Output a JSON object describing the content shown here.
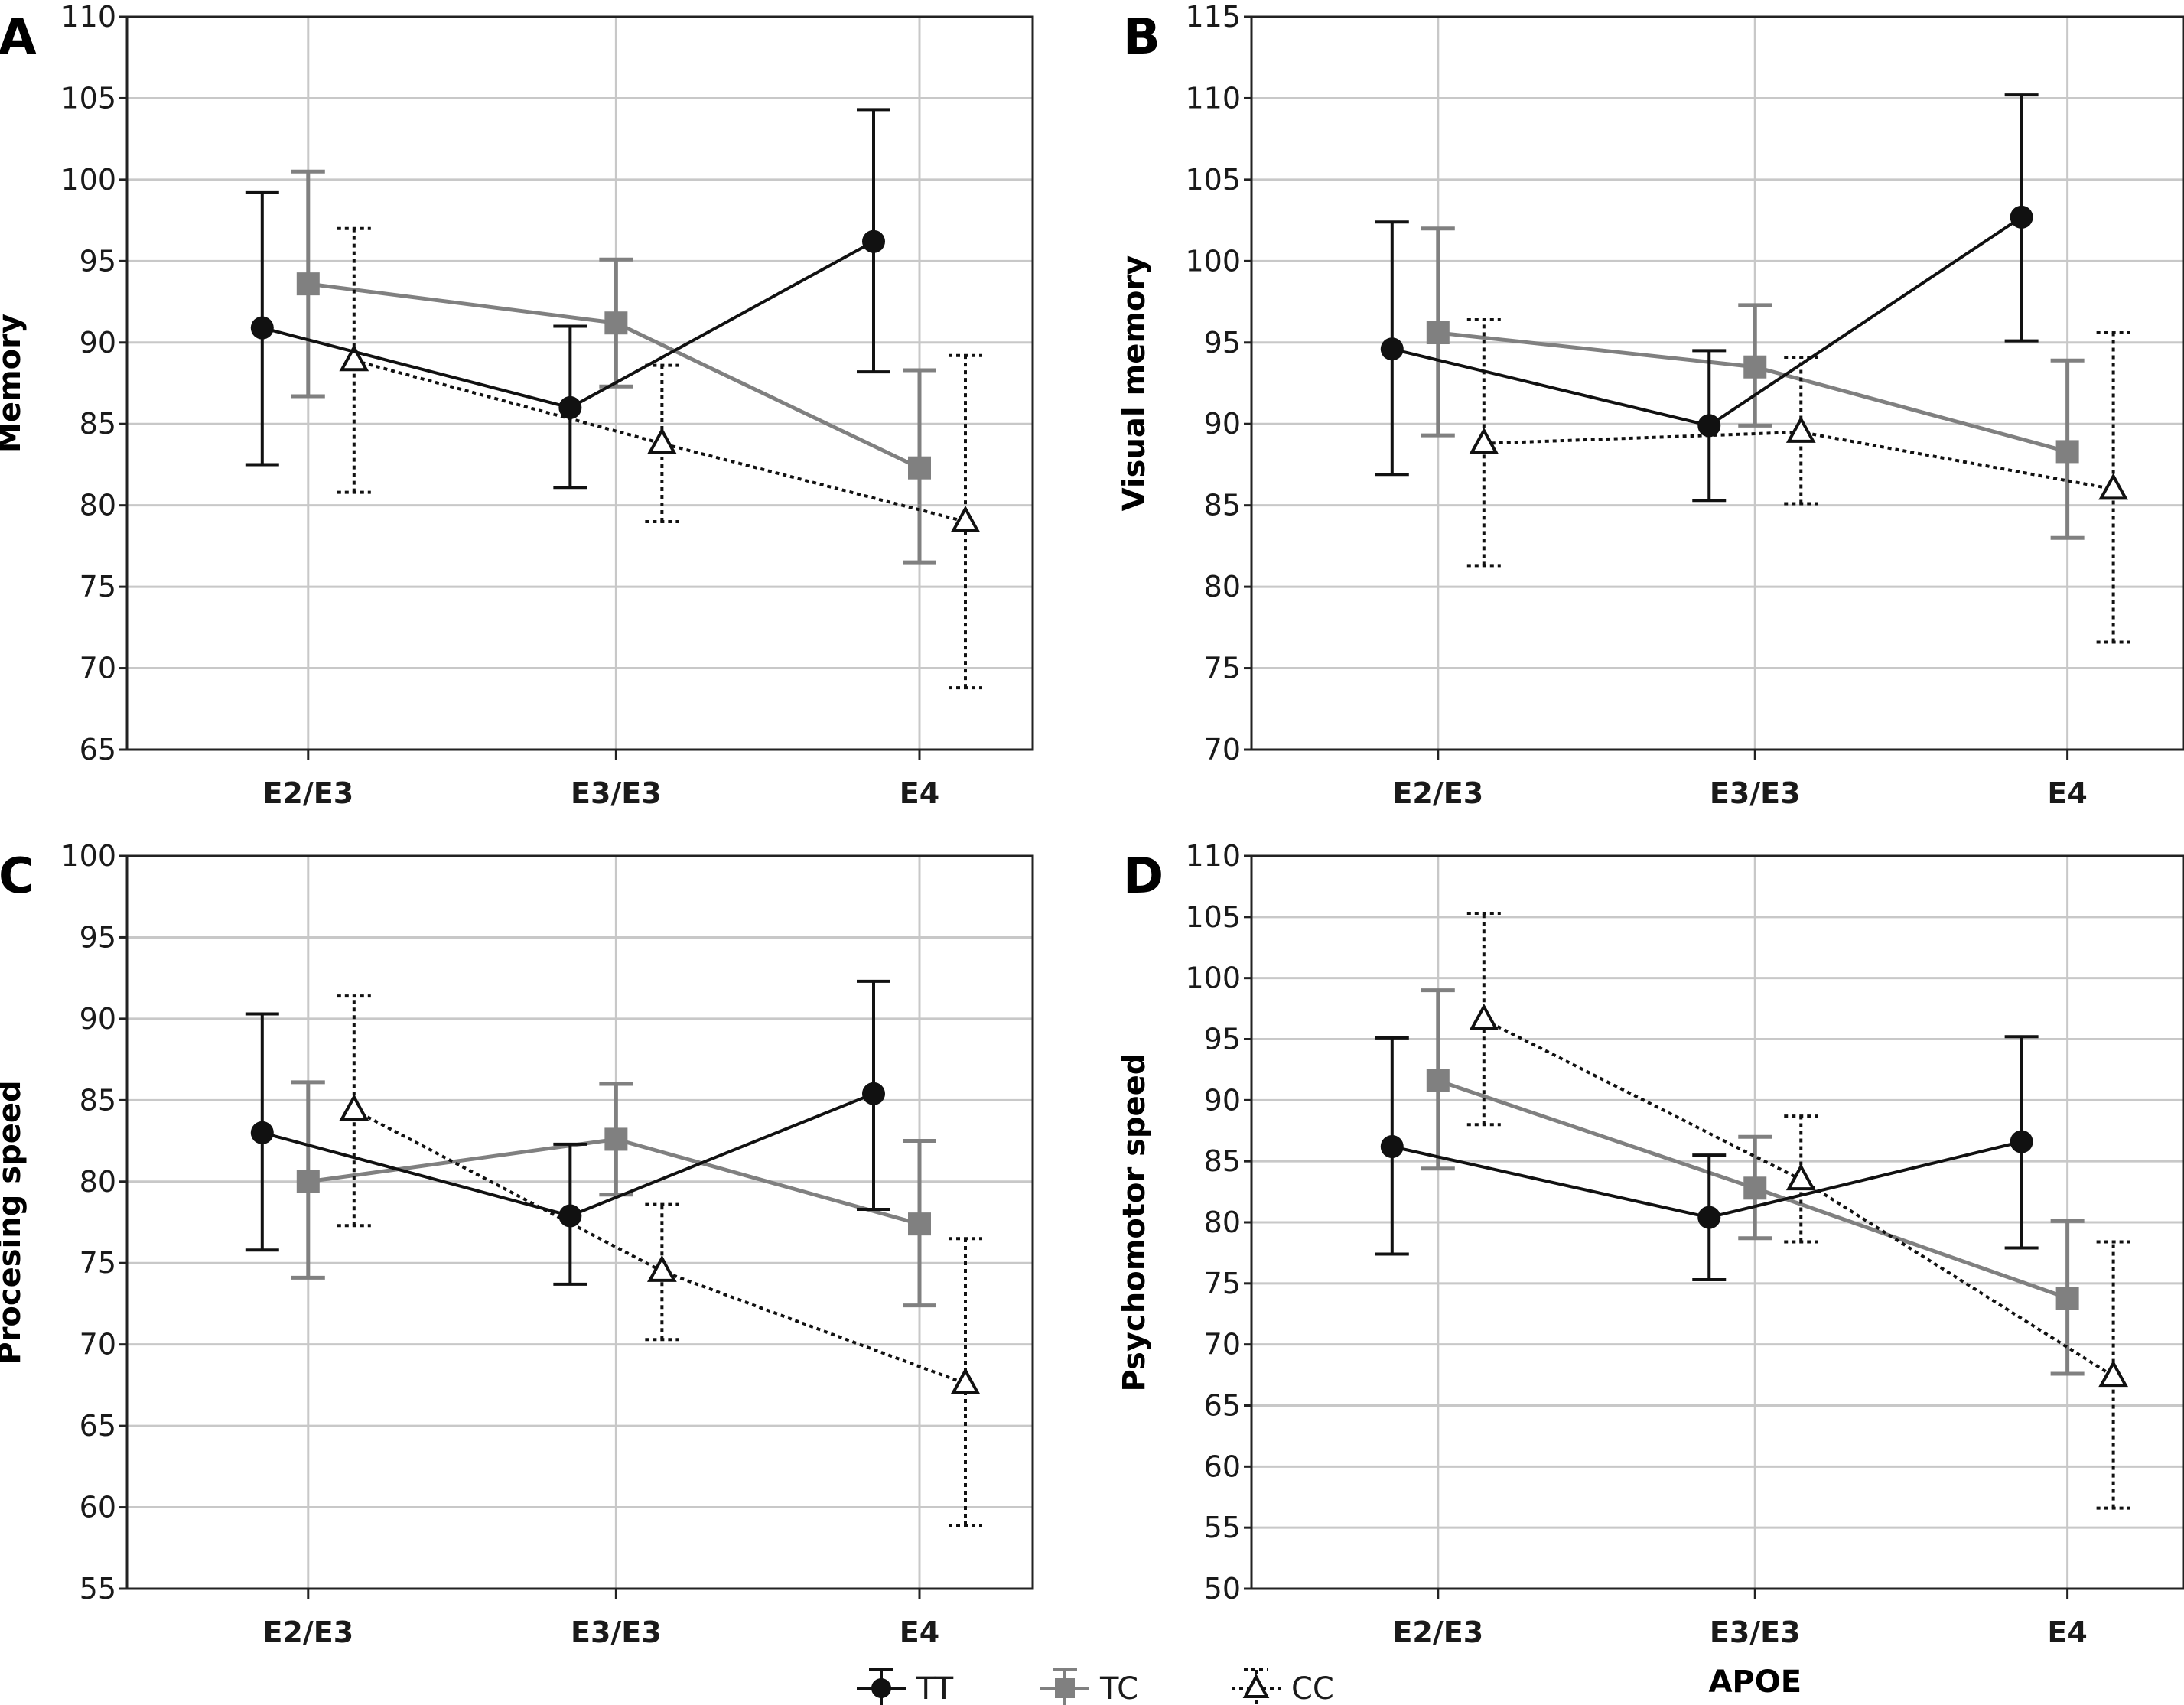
{
  "chart_data": [
    {
      "panel": "A",
      "type": "line",
      "ylabel": "Memory",
      "xlabel": "",
      "categories": [
        "E2/E3",
        "E3/E3",
        "E4"
      ],
      "ylim": [
        65,
        110
      ],
      "yticks": [
        65,
        70,
        75,
        80,
        85,
        90,
        95,
        100,
        105,
        110
      ],
      "grid": true,
      "series": [
        {
          "key": "TT",
          "mean": [
            90.9,
            86.0,
            96.2
          ],
          "lower": [
            82.5,
            81.1,
            88.2
          ],
          "upper": [
            99.2,
            91.0,
            104.3
          ]
        },
        {
          "key": "TC",
          "mean": [
            93.6,
            91.2,
            82.3
          ],
          "lower": [
            86.7,
            87.3,
            76.5
          ],
          "upper": [
            100.5,
            95.1,
            88.3
          ]
        },
        {
          "key": "CC",
          "mean": [
            88.9,
            83.8,
            79.0
          ],
          "lower": [
            80.8,
            79.0,
            68.8
          ],
          "upper": [
            97.0,
            88.6,
            89.2
          ]
        }
      ]
    },
    {
      "panel": "B",
      "type": "line",
      "ylabel": "Visual memory",
      "xlabel": "",
      "categories": [
        "E2/E3",
        "E3/E3",
        "E4"
      ],
      "ylim": [
        70,
        115
      ],
      "yticks": [
        70,
        75,
        80,
        85,
        90,
        95,
        100,
        105,
        110,
        115
      ],
      "grid": true,
      "series": [
        {
          "key": "TT",
          "mean": [
            94.6,
            89.9,
            102.7
          ],
          "lower": [
            86.9,
            85.3,
            95.1
          ],
          "upper": [
            102.4,
            94.5,
            110.2
          ]
        },
        {
          "key": "TC",
          "mean": [
            95.6,
            93.5,
            88.3
          ],
          "lower": [
            89.3,
            89.9,
            83.0
          ],
          "upper": [
            102.0,
            97.3,
            93.9
          ]
        },
        {
          "key": "CC",
          "mean": [
            88.8,
            89.5,
            86.0
          ],
          "lower": [
            81.3,
            85.1,
            76.6
          ],
          "upper": [
            96.4,
            94.1,
            95.6
          ]
        }
      ]
    },
    {
      "panel": "C",
      "type": "line",
      "ylabel": "Procesing speed",
      "xlabel": "",
      "categories": [
        "E2/E3",
        "E3/E3",
        "E4"
      ],
      "ylim": [
        55,
        100
      ],
      "yticks": [
        55,
        60,
        65,
        70,
        75,
        80,
        85,
        90,
        95,
        100
      ],
      "grid": true,
      "series": [
        {
          "key": "TT",
          "mean": [
            83.0,
            77.9,
            85.4
          ],
          "lower": [
            75.8,
            73.7,
            78.3
          ],
          "upper": [
            90.3,
            82.3,
            92.3
          ]
        },
        {
          "key": "TC",
          "mean": [
            80.0,
            82.6,
            77.4
          ],
          "lower": [
            74.1,
            79.2,
            72.4
          ],
          "upper": [
            86.1,
            86.0,
            82.5
          ]
        },
        {
          "key": "CC",
          "mean": [
            84.4,
            74.5,
            67.6
          ],
          "lower": [
            77.3,
            70.3,
            58.9
          ],
          "upper": [
            91.4,
            78.6,
            76.5
          ]
        }
      ]
    },
    {
      "panel": "D",
      "type": "line",
      "ylabel": "Psychomotor speed",
      "xlabel": "APOE",
      "categories": [
        "E2/E3",
        "E3/E3",
        "E4"
      ],
      "ylim": [
        50,
        110
      ],
      "yticks": [
        50,
        55,
        60,
        65,
        70,
        75,
        80,
        85,
        90,
        95,
        100,
        105,
        110
      ],
      "grid": true,
      "series": [
        {
          "key": "TT",
          "mean": [
            86.2,
            80.4,
            86.6
          ],
          "lower": [
            77.4,
            75.3,
            77.9
          ],
          "upper": [
            95.1,
            85.5,
            95.2
          ]
        },
        {
          "key": "TC",
          "mean": [
            91.6,
            82.8,
            73.8
          ],
          "lower": [
            84.4,
            78.7,
            67.6
          ],
          "upper": [
            99.0,
            87.0,
            80.1
          ]
        },
        {
          "key": "CC",
          "mean": [
            96.6,
            83.5,
            67.4
          ],
          "lower": [
            88.0,
            78.4,
            56.6
          ],
          "upper": [
            105.3,
            88.7,
            78.4
          ]
        }
      ]
    }
  ],
  "legend": {
    "placement": "bottom-center",
    "items": [
      {
        "key": "TT",
        "label": "TT"
      },
      {
        "key": "TC",
        "label": "TC"
      },
      {
        "key": "CC",
        "label": "CC"
      }
    ]
  },
  "styles": {
    "TT": {
      "color": "#111111",
      "marker": "circle",
      "line": "solid"
    },
    "TC": {
      "color": "#808080",
      "marker": "square",
      "line": "solid"
    },
    "CC": {
      "color": "#111111",
      "marker": "triangle-open",
      "line": "dotted"
    }
  },
  "grid_color": "#c8c8c8"
}
